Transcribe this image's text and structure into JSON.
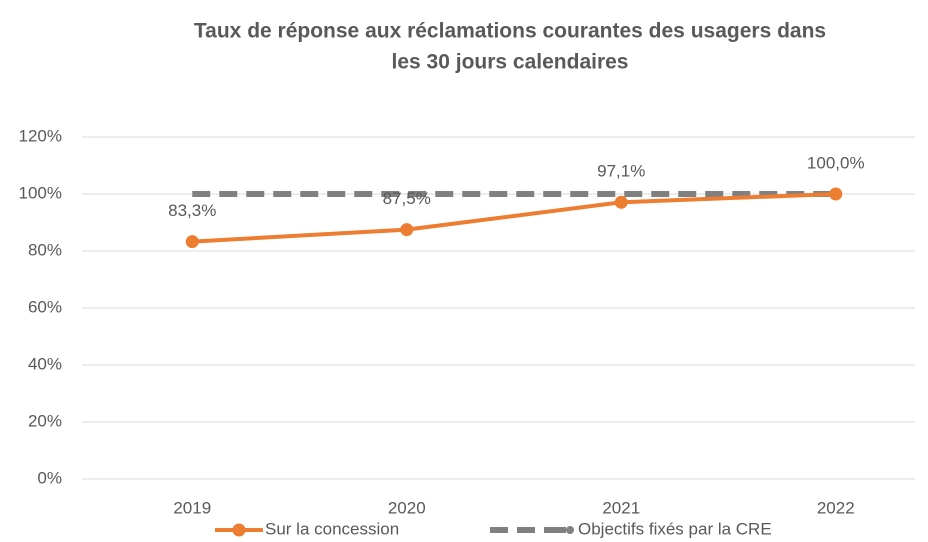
{
  "chart_data": {
    "type": "line",
    "title": [
      "Taux de réponse aux réclamations courantes des usagers dans",
      "les 30 jours calendaires"
    ],
    "categories": [
      "2019",
      "2020",
      "2021",
      "2022"
    ],
    "series": [
      {
        "name": "Sur la concession",
        "color": "#ed7d31",
        "values": [
          83.3,
          87.5,
          97.1,
          100.0
        ],
        "value_labels": [
          "83,3%",
          "87,5%",
          "97,1%",
          "100,0%"
        ]
      },
      {
        "name": "Objectifs fixés par la CRE",
        "color": "#808080",
        "dashed": true,
        "values": [
          100,
          100,
          100,
          100
        ]
      }
    ],
    "ylim": [
      0,
      120
    ],
    "yticks": [
      {
        "value": 0,
        "label": "0%"
      },
      {
        "value": 20,
        "label": "20%"
      },
      {
        "value": 40,
        "label": "40%"
      },
      {
        "value": 60,
        "label": "60%"
      },
      {
        "value": 80,
        "label": "80%"
      },
      {
        "value": 100,
        "label": "100%"
      },
      {
        "value": 120,
        "label": "120%"
      }
    ],
    "grid": true,
    "legend": "bottom"
  }
}
